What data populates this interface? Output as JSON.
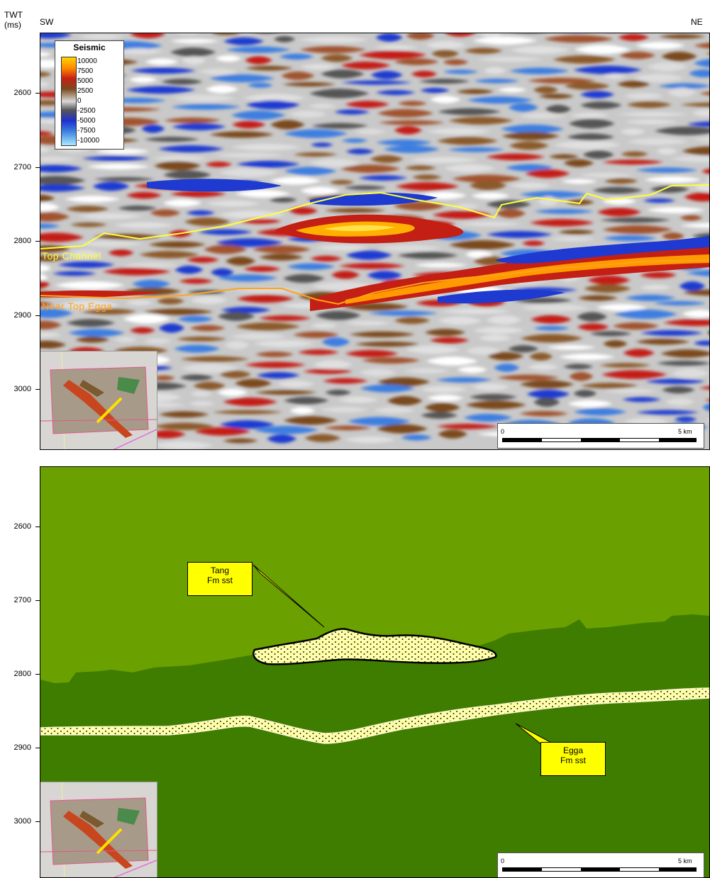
{
  "axis": {
    "twt_label": "TWT",
    "unit_label": "(ms)",
    "sw_label": "SW",
    "ne_label": "NE",
    "ticks_top": [
      "2600",
      "2700",
      "2800",
      "2900",
      "3000"
    ],
    "ticks_bottom": [
      "2600",
      "2700",
      "2800",
      "2900",
      "3000"
    ]
  },
  "legend": {
    "title": "Seismic",
    "values": [
      "10000",
      "7500",
      "5000",
      "2500",
      "0",
      "-2500",
      "-5000",
      "-7500",
      "-10000"
    ]
  },
  "horizons": {
    "top_channel": "Top Channel",
    "near_top_egga": "Near Top Egga"
  },
  "scale_top": {
    "start": "0",
    "end": "5 km"
  },
  "scale_bottom": {
    "start": "0",
    "end": "5 km"
  },
  "callouts": {
    "tang": {
      "line1": "Tang",
      "line2": "Fm sst"
    },
    "egga": {
      "line1": "Egga",
      "line2": "Fm sst"
    }
  },
  "colors": {
    "upper_unit": "#6aa000",
    "lower_unit": "#3f7d00",
    "sandstone": "#ffffa8",
    "callout_fill": "#ffff00",
    "top_channel_line": "#ffff3c",
    "near_top_egga_line": "#ffa31a"
  }
}
